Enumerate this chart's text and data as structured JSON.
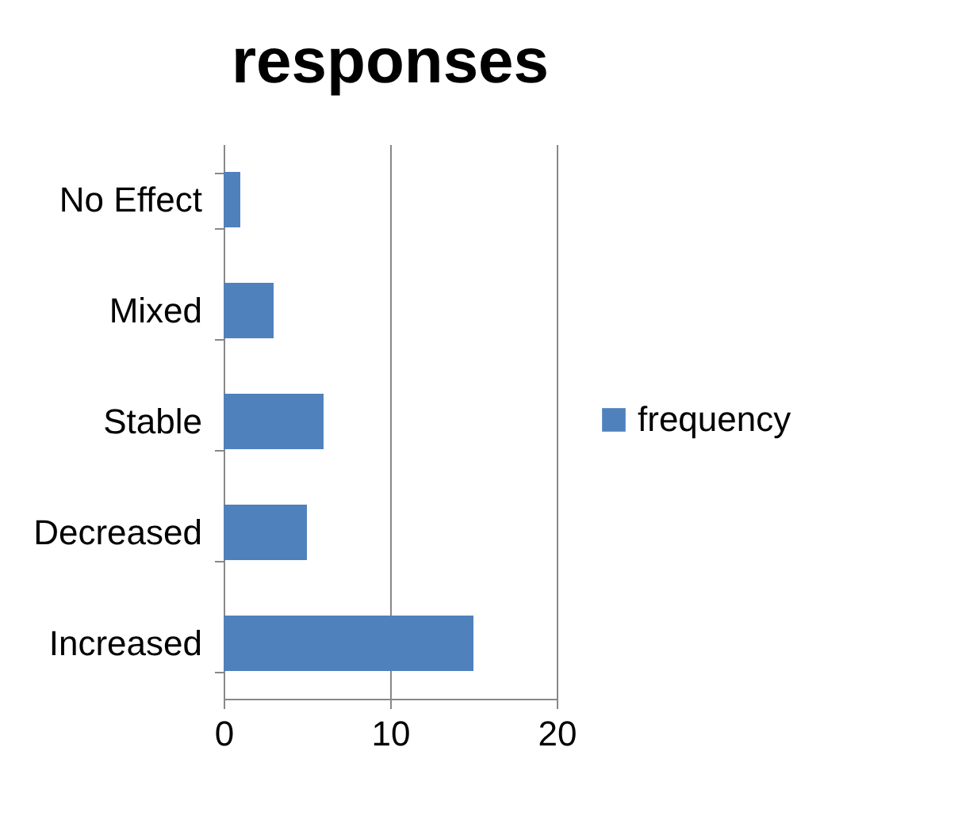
{
  "chart_data": {
    "type": "bar",
    "orientation": "horizontal",
    "title": "responses",
    "categories": [
      "No Effect",
      "Mixed",
      "Stable",
      "Decreased",
      "Increased"
    ],
    "series": [
      {
        "name": "frequency",
        "color": "#4f81bd",
        "values": [
          1,
          3,
          6,
          5,
          15
        ]
      }
    ],
    "xlim": [
      0,
      20
    ],
    "xticks": [
      0,
      10,
      20
    ],
    "grid": "x",
    "legend": "right"
  }
}
